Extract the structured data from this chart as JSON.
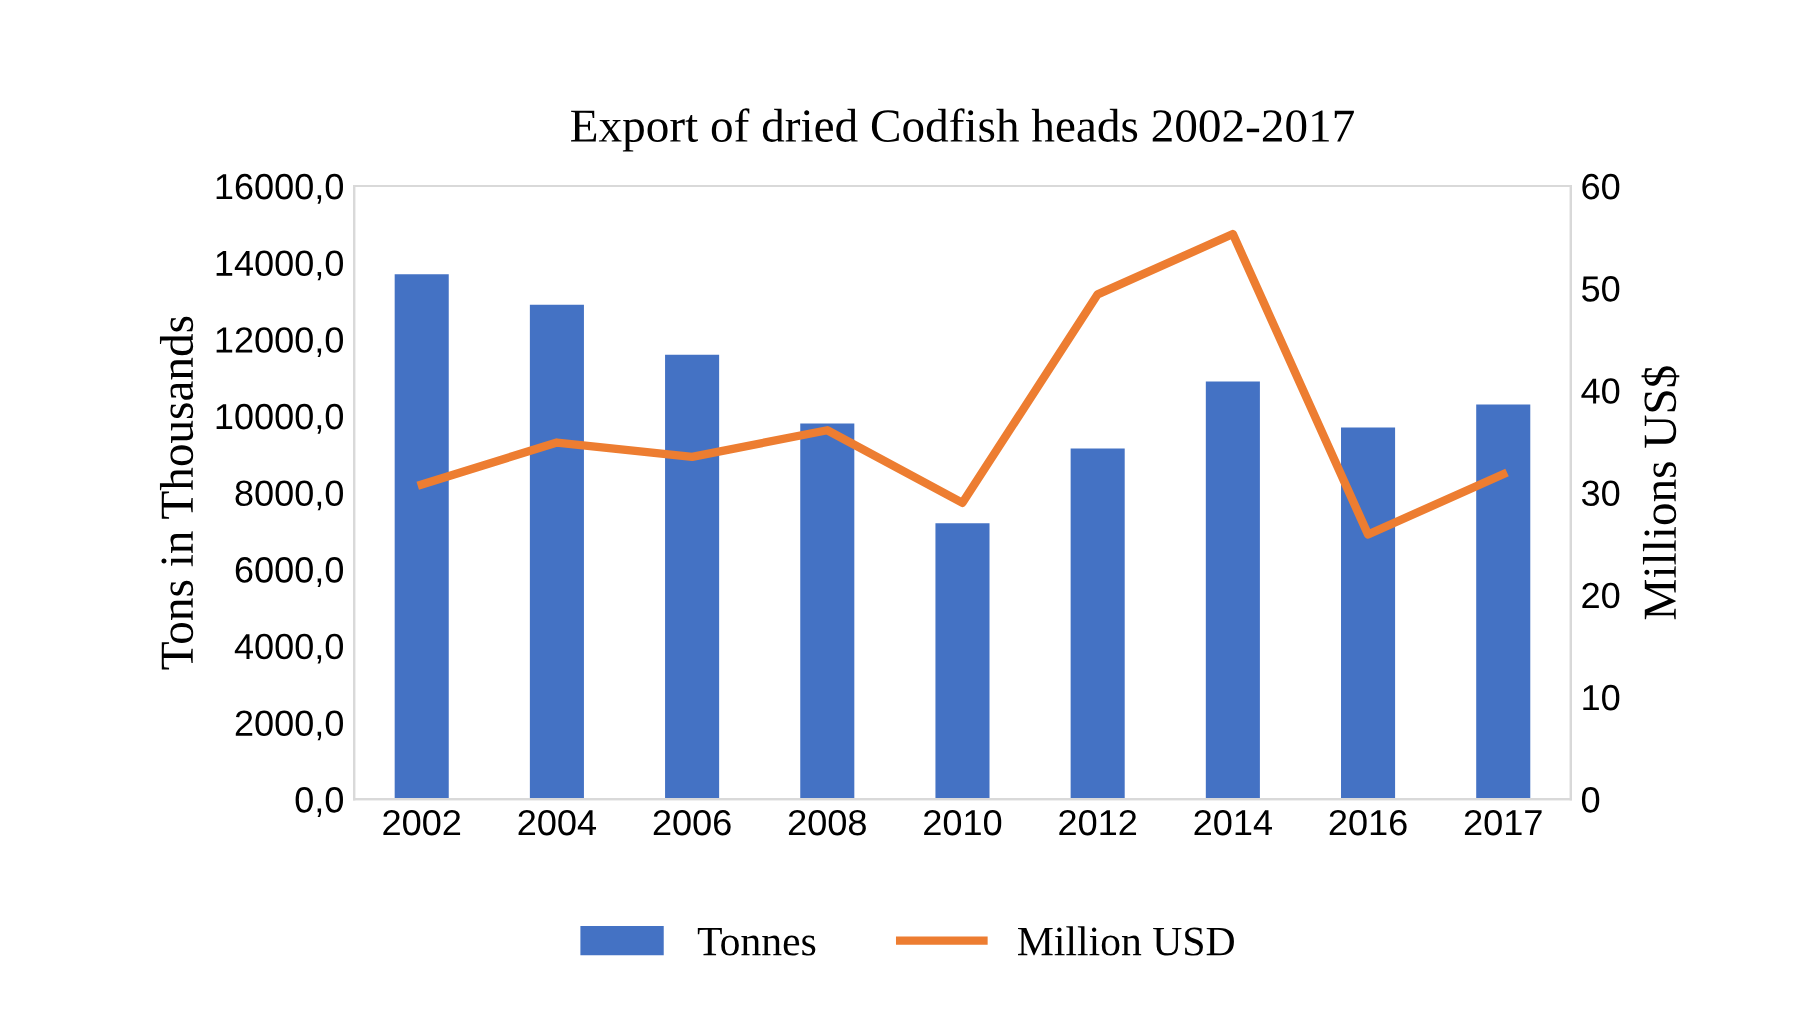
{
  "chart_data": {
    "type": "bar",
    "title": "Export of dried Codfish heads 2002-2017",
    "ylabel": "Tons in Thousands",
    "y2label": "Millions US$",
    "categories": [
      "2002",
      "2004",
      "2006",
      "2008",
      "2010",
      "2012",
      "2014",
      "2016",
      "2017"
    ],
    "series": [
      {
        "name": "Tonnes",
        "color": "#4472c4",
        "values": [
          13700,
          12900,
          11600,
          9800,
          7200,
          9150,
          10900,
          9700,
          10300
        ]
      },
      {
        "name": "Million USD",
        "type": "line",
        "axis": "y2",
        "color": "#ed7d31",
        "values": [
          30.8,
          34.9,
          33.5,
          36.1,
          29.0,
          49.4,
          55.3,
          25.9,
          31.8
        ]
      }
    ],
    "ylim": [
      0,
      16000
    ],
    "yticks": [
      {
        "value": 0,
        "label": "0,0"
      },
      {
        "value": 2000,
        "label": "2000,0"
      },
      {
        "value": 4000,
        "label": "4000,0"
      },
      {
        "value": 6000,
        "label": "6000,0"
      },
      {
        "value": 8000,
        "label": "8000,0"
      },
      {
        "value": 10000,
        "label": "10000,0"
      },
      {
        "value": 12000,
        "label": "12000,0"
      },
      {
        "value": 14000,
        "label": "14000,0"
      },
      {
        "value": 16000,
        "label": "16000,0"
      }
    ],
    "y2lim": [
      0,
      60
    ],
    "y2ticks": [
      0,
      10,
      20,
      30,
      40,
      50,
      60
    ],
    "grid": false,
    "legend": "bottom",
    "marker": "none",
    "line_style": "solid"
  }
}
